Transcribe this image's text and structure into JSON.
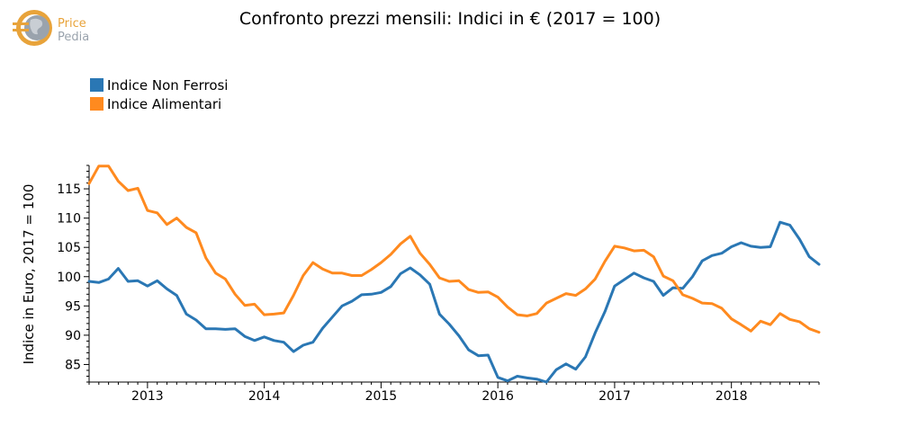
{
  "logo": {
    "line1": "Price",
    "line2": "Pedia"
  },
  "colors": {
    "series1": "#2a77b4",
    "series2": "#ff8a1f",
    "logo": "#e8a33a"
  },
  "chart_data": {
    "type": "line",
    "title": "Confronto prezzi mensili: Indici in € (2017 = 100)",
    "ylabel": "Indice in Euro, 2017 = 100",
    "xlabel": "",
    "ylim": [
      82,
      119
    ],
    "xlim": [
      "2012-07",
      "2018-10"
    ],
    "x_ticks": [
      "2013",
      "2014",
      "2015",
      "2016",
      "2017",
      "2018"
    ],
    "y_ticks": [
      85,
      90,
      95,
      100,
      105,
      110,
      115
    ],
    "grid": false,
    "legend_position": "top-left",
    "x": [
      "2012-07",
      "2012-08",
      "2012-09",
      "2012-10",
      "2012-11",
      "2012-12",
      "2013-01",
      "2013-02",
      "2013-03",
      "2013-04",
      "2013-05",
      "2013-06",
      "2013-07",
      "2013-08",
      "2013-09",
      "2013-10",
      "2013-11",
      "2013-12",
      "2014-01",
      "2014-02",
      "2014-03",
      "2014-04",
      "2014-05",
      "2014-06",
      "2014-07",
      "2014-08",
      "2014-09",
      "2014-10",
      "2014-11",
      "2014-12",
      "2015-01",
      "2015-02",
      "2015-03",
      "2015-04",
      "2015-05",
      "2015-06",
      "2015-07",
      "2015-08",
      "2015-09",
      "2015-10",
      "2015-11",
      "2015-12",
      "2016-01",
      "2016-02",
      "2016-03",
      "2016-04",
      "2016-05",
      "2016-06",
      "2016-07",
      "2016-08",
      "2016-09",
      "2016-10",
      "2016-11",
      "2016-12",
      "2017-01",
      "2017-02",
      "2017-03",
      "2017-04",
      "2017-05",
      "2017-06",
      "2017-07",
      "2017-08",
      "2017-09",
      "2017-10",
      "2017-11",
      "2017-12",
      "2018-01",
      "2018-02",
      "2018-03",
      "2018-04",
      "2018-05",
      "2018-06",
      "2018-07",
      "2018-08",
      "2018-09",
      "2018-10"
    ],
    "series": [
      {
        "name": "Indice Non Ferrosi",
        "values": [
          99.2,
          99.0,
          99.6,
          101.4,
          99.2,
          99.3,
          98.4,
          99.3,
          97.9,
          96.8,
          93.6,
          92.6,
          91.1,
          91.1,
          91.0,
          91.1,
          89.8,
          89.1,
          89.7,
          89.1,
          88.8,
          87.2,
          88.3,
          88.8,
          91.2,
          93.1,
          95.0,
          95.8,
          96.9,
          97.0,
          97.3,
          98.3,
          100.5,
          101.5,
          100.3,
          98.7,
          93.6,
          91.9,
          89.9,
          87.5,
          86.5,
          86.6,
          82.8,
          82.2,
          83.0,
          82.7,
          82.5,
          82.0,
          84.1,
          85.1,
          84.2,
          86.3,
          90.4,
          94.0,
          98.4,
          99.5,
          100.6,
          99.8,
          99.2,
          96.8,
          98.1,
          98.0,
          100.0,
          102.7,
          103.6,
          104.0,
          105.1,
          105.8,
          105.2,
          105.0,
          105.1,
          109.3,
          108.8,
          106.4,
          103.4,
          102.1
        ]
      },
      {
        "name": "Indice Alimentari",
        "values": [
          115.9,
          118.9,
          118.9,
          116.3,
          114.7,
          115.1,
          111.3,
          110.9,
          108.9,
          110.0,
          108.4,
          107.5,
          103.2,
          100.6,
          99.6,
          97.0,
          95.1,
          95.3,
          93.5,
          93.6,
          93.8,
          96.8,
          100.2,
          102.4,
          101.3,
          100.6,
          100.6,
          100.2,
          100.2,
          101.2,
          102.4,
          103.8,
          105.6,
          106.9,
          104.0,
          102.1,
          99.8,
          99.2,
          99.3,
          97.8,
          97.3,
          97.4,
          96.5,
          94.8,
          93.5,
          93.3,
          93.7,
          95.5,
          96.3,
          97.1,
          96.8,
          97.9,
          99.6,
          102.6,
          105.2,
          104.9,
          104.4,
          104.5,
          103.4,
          100.1,
          99.3,
          96.9,
          96.3,
          95.5,
          95.4,
          94.6,
          92.8,
          91.8,
          90.7,
          92.4,
          91.8,
          93.7,
          92.7,
          92.3,
          91.1,
          90.5
        ]
      }
    ]
  }
}
